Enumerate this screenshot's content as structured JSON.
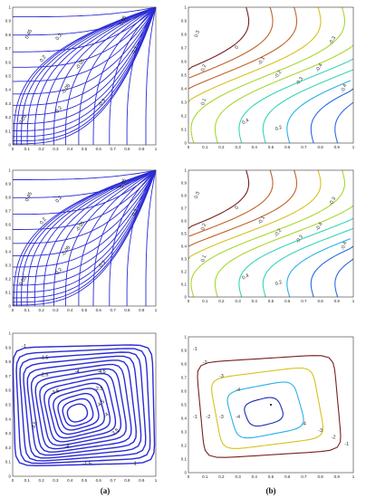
{
  "chart_data": [
    {
      "type": "contour",
      "panel": "top-left",
      "x_ticks": [
        "0",
        "0.1",
        "0.2",
        "0.3",
        "0.4",
        "0.5",
        "0.6",
        "0.7",
        "0.8",
        "0.9",
        "1"
      ],
      "y_ticks": [
        "0",
        "0.1",
        "0.2",
        "0.3",
        "0.4",
        "0.5",
        "0.6",
        "0.7",
        "0.8",
        "0.9",
        "1"
      ],
      "xlim": [
        0,
        1
      ],
      "ylim": [
        0,
        1
      ],
      "contour_labels": [
        "0.45",
        "0.2",
        "0.2",
        "-0.05",
        "-0.05",
        "0.05",
        "0.2",
        "-0.3",
        "-0.3",
        "0.05"
      ],
      "line_color": "#2b2bd6"
    },
    {
      "type": "contour",
      "panel": "top-right",
      "x_ticks": [
        "0",
        "0.1",
        "0.2",
        "0.3",
        "0.4",
        "0.5",
        "0.6",
        "0.7",
        "0.8",
        "0.9",
        "1"
      ],
      "y_ticks": [
        "0",
        "0.1",
        "0.2",
        "0.3",
        "0.4",
        "0.5",
        "0.6",
        "0.7",
        "0.8",
        "0.9",
        "1"
      ],
      "xlim": [
        0,
        1
      ],
      "ylim": [
        0,
        1
      ],
      "contour_labels": [
        "0.3",
        "0.2",
        "0.1",
        "0",
        "-0.1",
        "-0.2",
        "-0.3",
        "-0.4",
        "0.4",
        "0.2",
        "-0.3",
        "-0.4"
      ],
      "colormap": "jet"
    },
    {
      "type": "contour",
      "panel": "middle-left",
      "x_ticks": [
        "0",
        "0.1",
        "0.2",
        "0.3",
        "0.4",
        "0.5",
        "0.6",
        "0.7",
        "0.8",
        "0.9",
        "1"
      ],
      "y_ticks": [
        "0",
        "0.1",
        "0.2",
        "0.3",
        "0.4",
        "0.5",
        "0.6",
        "0.7",
        "0.8",
        "0.9",
        "1"
      ],
      "xlim": [
        0,
        1
      ],
      "ylim": [
        0,
        1
      ],
      "contour_labels": [
        "0.45",
        "0.2",
        "0.2",
        "-0.05",
        "-0.05",
        "0.05",
        "0.2",
        "-0.3",
        "-0.3",
        "0.05"
      ],
      "line_color": "#2b2bd6"
    },
    {
      "type": "contour",
      "panel": "middle-right",
      "x_ticks": [
        "0",
        "0.1",
        "0.2",
        "0.3",
        "0.4",
        "0.5",
        "0.6",
        "0.7",
        "0.8",
        "0.9",
        "1"
      ],
      "y_ticks": [
        "0",
        "0.1",
        "0.2",
        "0.3",
        "0.4",
        "0.5",
        "0.6",
        "0.7",
        "0.8",
        "0.9",
        "1"
      ],
      "xlim": [
        0,
        1
      ],
      "ylim": [
        0,
        1
      ],
      "contour_labels": [
        "0.3",
        "0.2",
        "0.1",
        "0",
        "-0.1",
        "-0.2",
        "-0.3",
        "-0.4",
        "0.4",
        "0.2",
        "-0.3",
        "-0.4"
      ],
      "colormap": "jet"
    },
    {
      "type": "contour",
      "panel": "bottom-left",
      "x_ticks": [
        "0",
        "0.1",
        "0.2",
        "0.3",
        "0.4",
        "0.5",
        "0.6",
        "0.7",
        "0.8",
        "0.9",
        "1"
      ],
      "y_ticks": [
        "0",
        "0.1",
        "0.2",
        "0.3",
        "0.4",
        "0.5",
        "0.6",
        "0.7",
        "0.8",
        "0.9",
        "1"
      ],
      "xlim": [
        0,
        1
      ],
      "ylim": [
        0,
        1
      ],
      "contour_labels": [
        "-1",
        "-1.5",
        "-2.5",
        "-3.5",
        "-4",
        "-4.5",
        "-4.5",
        "-4",
        "-3.5",
        "-3.5",
        "-4",
        "-1.5",
        "-1",
        "-2.5"
      ],
      "levels": [
        -1,
        -1.5,
        -2,
        -2.5,
        -3,
        -3.5,
        -4,
        -4.5
      ],
      "line_color": "#2b2bd6"
    },
    {
      "type": "contour",
      "panel": "bottom-right",
      "x_ticks": [
        "0",
        "0.1",
        "0.2",
        "0.3",
        "0.4",
        "0.5",
        "0.6",
        "0.7",
        "0.8",
        "0.9",
        "1"
      ],
      "y_ticks": [
        "0",
        "0.1",
        "0.2",
        "0.3",
        "0.4",
        "0.5",
        "0.6",
        "0.7",
        "0.8",
        "0.9",
        "1"
      ],
      "xlim": [
        0,
        1
      ],
      "ylim": [
        0,
        1
      ],
      "contour_labels": [
        "-1",
        "-2",
        "-3",
        "-4",
        "-1",
        "-2",
        "-3",
        "-4",
        "-1",
        "-2",
        "-3",
        "-4"
      ],
      "levels": [
        -1,
        -2,
        -3,
        -4
      ],
      "colormap": "jet"
    }
  ],
  "labels": {
    "a": "(a)",
    "b": "(b)"
  },
  "colors": {
    "blue": "#2b2bd6",
    "jet": [
      "#7a1f1f",
      "#c0622a",
      "#d6c21e",
      "#a8d830",
      "#35d6b6",
      "#2ab0e8",
      "#2a6be0",
      "#1a2ab0"
    ]
  }
}
